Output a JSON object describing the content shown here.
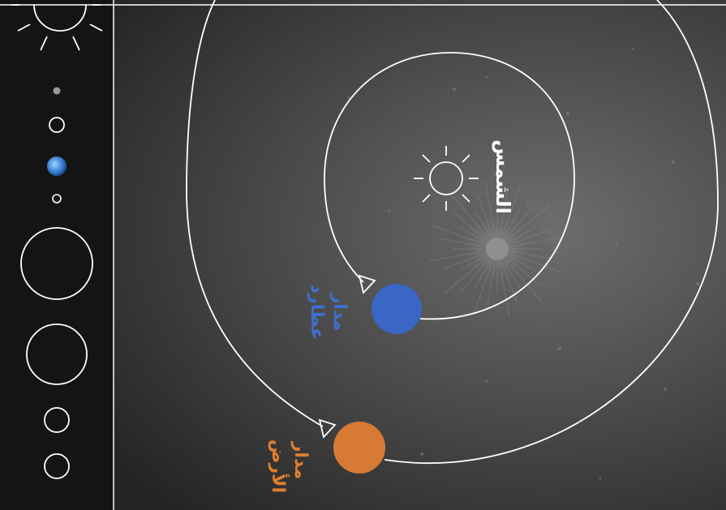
{
  "labels": {
    "sun": "الشمس",
    "mercury_orbit_line1": "مدار",
    "mercury_orbit_line2": "عطارد",
    "earth_orbit_line1": "مدار",
    "earth_orbit_line2": "الأرض"
  },
  "colors": {
    "background_dark": "#2b2b2b",
    "panel": "#141414",
    "line": "#ffffff",
    "mercury": "#3a66c4",
    "earth": "#d67a34",
    "mercury_label": "#3f6fd0",
    "earth_label": "#e07f2e",
    "sun_label": "#ffffff"
  },
  "sidebar_planets": [
    {
      "name": "mercury",
      "style": "gray-dot"
    },
    {
      "name": "venus",
      "style": "outline"
    },
    {
      "name": "earth",
      "style": "earth-globe"
    },
    {
      "name": "mars",
      "style": "outline"
    },
    {
      "name": "jupiter",
      "style": "outline"
    },
    {
      "name": "saturn",
      "style": "outline"
    },
    {
      "name": "uranus",
      "style": "outline"
    },
    {
      "name": "neptune",
      "style": "outline"
    }
  ]
}
